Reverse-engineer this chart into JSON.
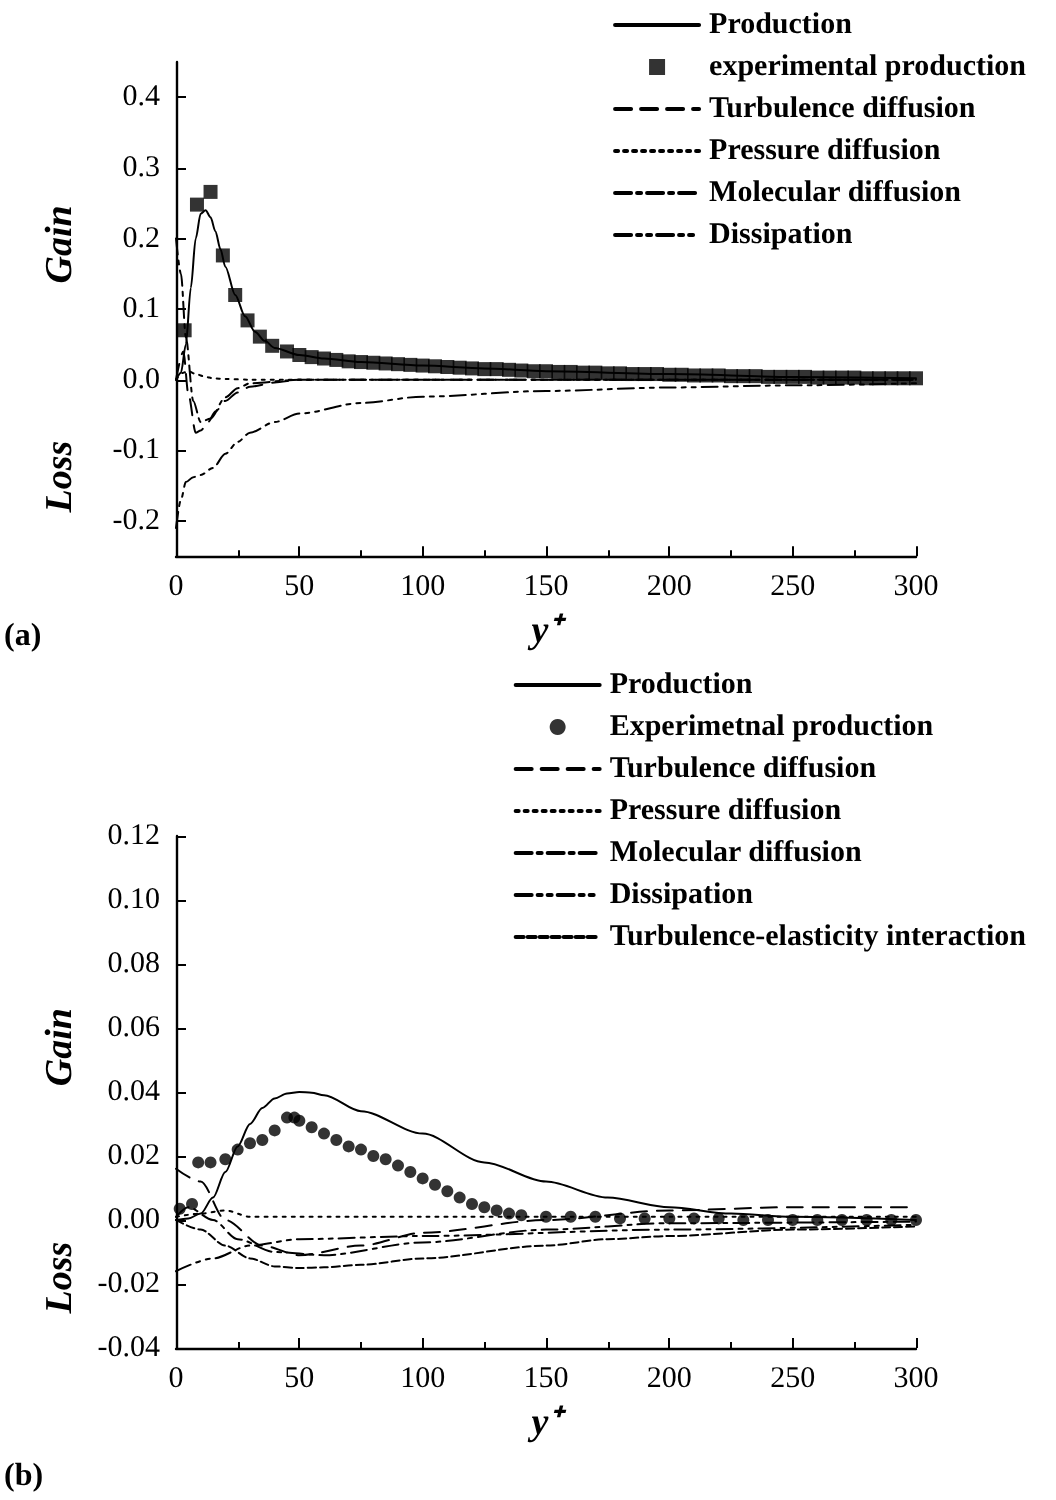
{
  "chart_data": [
    {
      "type": "line",
      "ylabel": "Gain",
      "xlabel": "y⁺",
      "annotations": [
        "Loss",
        "(a)"
      ],
      "xlim": [
        0,
        300
      ],
      "xticks": [
        0,
        50,
        100,
        150,
        200,
        250,
        300
      ],
      "ylim": [
        -0.25,
        0.45
      ],
      "yticks": [
        -0.2,
        -0.1,
        {
          "value": 0,
          "label": "0.0"
        },
        0.1,
        0.2,
        0.3,
        0.4
      ],
      "legend": "top right",
      "grid": false,
      "series": [
        {
          "name": "Production",
          "color": "#000000",
          "line_style": "solid",
          "marker": "none",
          "x": [
            0,
            2,
            4,
            6,
            8,
            10,
            12,
            14,
            16,
            18,
            20,
            24,
            28,
            32,
            36,
            40,
            50,
            60,
            75,
            100,
            125,
            150,
            200,
            250,
            300
          ],
          "values": [
            0,
            0.01,
            0.05,
            0.13,
            0.2,
            0.235,
            0.24,
            0.23,
            0.21,
            0.185,
            0.16,
            0.12,
            0.09,
            0.068,
            0.055,
            0.045,
            0.035,
            0.03,
            0.025,
            0.02,
            0.016,
            0.012,
            0.008,
            0.004,
            0.002
          ]
        },
        {
          "name": "experimental production",
          "type": "scatter",
          "color": "#000000",
          "marker": "square",
          "x": [
            3.5,
            8.5,
            14,
            19,
            24,
            29,
            34,
            39,
            45,
            50,
            55,
            60,
            65,
            70,
            75,
            80,
            85,
            90,
            95,
            100,
            105,
            110,
            115,
            120,
            125,
            130,
            135,
            140,
            145,
            150,
            155,
            160,
            165,
            170,
            175,
            180,
            185,
            190,
            195,
            200,
            205,
            210,
            215,
            220,
            225,
            230,
            235,
            240,
            245,
            250,
            255,
            260,
            265,
            270,
            275,
            280,
            285,
            290,
            295,
            300
          ],
          "values": [
            0.07,
            0.248,
            0.266,
            0.176,
            0.12,
            0.084,
            0.061,
            0.048,
            0.04,
            0.035,
            0.032,
            0.03,
            0.028,
            0.026,
            0.025,
            0.024,
            0.023,
            0.022,
            0.021,
            0.02,
            0.019,
            0.018,
            0.017,
            0.016,
            0.015,
            0.015,
            0.014,
            0.013,
            0.012,
            0.012,
            0.011,
            0.011,
            0.01,
            0.01,
            0.009,
            0.009,
            0.008,
            0.008,
            0.008,
            0.007,
            0.007,
            0.006,
            0.006,
            0.006,
            0.005,
            0.005,
            0.005,
            0.004,
            0.004,
            0.004,
            0.004,
            0.003,
            0.003,
            0.003,
            0.003,
            0.002,
            0.002,
            0.002,
            0.002,
            0.002
          ]
        },
        {
          "name": "Turbulence diffusion",
          "color": "#000000",
          "line_style": "dashed",
          "marker": "none",
          "x": [
            0,
            3,
            5,
            8,
            10,
            13,
            16,
            20,
            25,
            30,
            40,
            50,
            100,
            200,
            300
          ],
          "values": [
            0,
            0.04,
            -0.02,
            -0.075,
            -0.072,
            -0.06,
            -0.045,
            -0.03,
            -0.018,
            -0.01,
            -0.004,
            0,
            0,
            0,
            0
          ]
        },
        {
          "name": "Pressure diffusion",
          "color": "#000000",
          "line_style": "dotted",
          "marker": "none",
          "x": [
            0,
            3,
            5,
            8,
            12,
            15,
            20,
            30,
            50,
            100,
            200,
            300
          ],
          "values": [
            0,
            0.01,
            0.012,
            0.008,
            0.004,
            0.002,
            0.001,
            0,
            0,
            0,
            0,
            0
          ]
        },
        {
          "name": "Molecular diffusion",
          "color": "#000000",
          "line_style": "dashdot",
          "marker": "none",
          "x": [
            0,
            2,
            4,
            7,
            10,
            14,
            20,
            25,
            30,
            50,
            100,
            200,
            300
          ],
          "values": [
            0.2,
            0.15,
            0.06,
            -0.03,
            -0.06,
            -0.055,
            -0.025,
            -0.012,
            -0.005,
            0,
            0,
            0,
            0
          ]
        },
        {
          "name": "Dissipation",
          "color": "#000000",
          "line_style": "dashdotdot",
          "marker": "none",
          "x": [
            0,
            2,
            4,
            7,
            10,
            15,
            20,
            25,
            30,
            40,
            50,
            75,
            100,
            150,
            200,
            250,
            300
          ],
          "values": [
            -0.21,
            -0.17,
            -0.145,
            -0.138,
            -0.135,
            -0.125,
            -0.105,
            -0.088,
            -0.075,
            -0.06,
            -0.048,
            -0.033,
            -0.024,
            -0.016,
            -0.011,
            -0.008,
            -0.005
          ]
        }
      ]
    },
    {
      "type": "line",
      "ylabel": "Gain",
      "xlabel": "y⁺",
      "annotations": [
        "Loss",
        "(b)"
      ],
      "xlim": [
        0,
        300
      ],
      "xticks": [
        0,
        50,
        100,
        150,
        200,
        250,
        300
      ],
      "ylim": [
        -0.04,
        0.12
      ],
      "yticks": [
        {
          "value": -0.04,
          "label": "-0.04"
        },
        {
          "value": -0.02,
          "label": "-0.02"
        },
        {
          "value": 0,
          "label": "0.00"
        },
        {
          "value": 0.02,
          "label": "0.02"
        },
        {
          "value": 0.04,
          "label": "0.04"
        },
        {
          "value": 0.06,
          "label": "0.06"
        },
        {
          "value": 0.08,
          "label": "0.08"
        },
        {
          "value": 0.1,
          "label": "0.10"
        },
        {
          "value": 0.12,
          "label": "0.12"
        }
      ],
      "legend": "top right",
      "grid": false,
      "series": [
        {
          "name": "Production",
          "color": "#000000",
          "line_style": "solid",
          "marker": "none",
          "x": [
            0,
            5,
            10,
            15,
            20,
            25,
            30,
            35,
            40,
            45,
            50,
            55,
            60,
            75,
            100,
            125,
            150,
            175,
            200,
            225,
            250,
            300
          ],
          "values": [
            0,
            0.0005,
            0.002,
            0.007,
            0.015,
            0.023,
            0.03,
            0.035,
            0.038,
            0.0395,
            0.04,
            0.0398,
            0.039,
            0.034,
            0.027,
            0.018,
            0.012,
            0.007,
            0.004,
            0.002,
            0.001,
            0
          ]
        },
        {
          "name": "Experimetnal production",
          "type": "scatter",
          "color": "#000000",
          "marker": "circle",
          "x": [
            1.5,
            6.5,
            9,
            14,
            20,
            25,
            30,
            35,
            40,
            45,
            48,
            50,
            55,
            60,
            65,
            70,
            75,
            80,
            85,
            90,
            95,
            100,
            105,
            110,
            115,
            120,
            125,
            130,
            135,
            140,
            150,
            160,
            170,
            180,
            190,
            200,
            210,
            220,
            230,
            240,
            250,
            260,
            270,
            280,
            290,
            300
          ],
          "values": [
            0.0035,
            0.005,
            0.018,
            0.018,
            0.019,
            0.022,
            0.024,
            0.025,
            0.028,
            0.032,
            0.032,
            0.031,
            0.029,
            0.027,
            0.025,
            0.023,
            0.022,
            0.02,
            0.019,
            0.017,
            0.015,
            0.013,
            0.011,
            0.009,
            0.007,
            0.005,
            0.004,
            0.003,
            0.002,
            0.0015,
            0.001,
            0.001,
            0.001,
            0.0005,
            0.0005,
            0.0005,
            0.0005,
            0.0005,
            0,
            0,
            0,
            0,
            0,
            0,
            0,
            0
          ]
        },
        {
          "name": "Turbulence diffusion",
          "color": "#000000",
          "line_style": "dashed",
          "marker": "none",
          "x": [
            0,
            10,
            20,
            35,
            50,
            75,
            100,
            150,
            200,
            250,
            300
          ],
          "values": [
            0.016,
            0.012,
            0,
            -0.008,
            -0.011,
            -0.008,
            -0.004,
            0,
            0.003,
            0.004,
            0.004
          ]
        },
        {
          "name": "Pressure diffusion",
          "color": "#000000",
          "line_style": "dotted",
          "marker": "none",
          "x": [
            0,
            10,
            20,
            30,
            50,
            100,
            200,
            300
          ],
          "values": [
            0.001,
            0.002,
            0.003,
            0.001,
            0.001,
            0.001,
            0.001,
            0.001
          ]
        },
        {
          "name": "Molecular diffusion",
          "color": "#000000",
          "line_style": "dashdot",
          "marker": "none",
          "x": [
            0,
            5,
            15,
            25,
            40,
            60,
            100,
            150,
            200,
            300
          ],
          "values": [
            0.001,
            0.004,
            0,
            -0.006,
            -0.01,
            -0.011,
            -0.007,
            -0.003,
            -0.001,
            -0.0005
          ]
        },
        {
          "name": "Dissipation",
          "color": "#000000",
          "line_style": "dashdotdot",
          "marker": "none",
          "x": [
            0,
            15,
            30,
            50,
            100,
            200,
            300
          ],
          "values": [
            -0.016,
            -0.012,
            -0.008,
            -0.006,
            -0.005,
            -0.003,
            -0.0015
          ]
        },
        {
          "name": "Turbulence-elasticity interaction",
          "color": "#000000",
          "line_style": "shortdash",
          "marker": "none",
          "x": [
            0,
            10,
            20,
            30,
            40,
            50,
            60,
            75,
            100,
            150,
            175,
            200,
            250,
            300
          ],
          "values": [
            0,
            -0.003,
            -0.008,
            -0.012,
            -0.0145,
            -0.015,
            -0.0148,
            -0.014,
            -0.012,
            -0.008,
            -0.006,
            -0.005,
            -0.003,
            -0.002
          ]
        }
      ]
    }
  ]
}
